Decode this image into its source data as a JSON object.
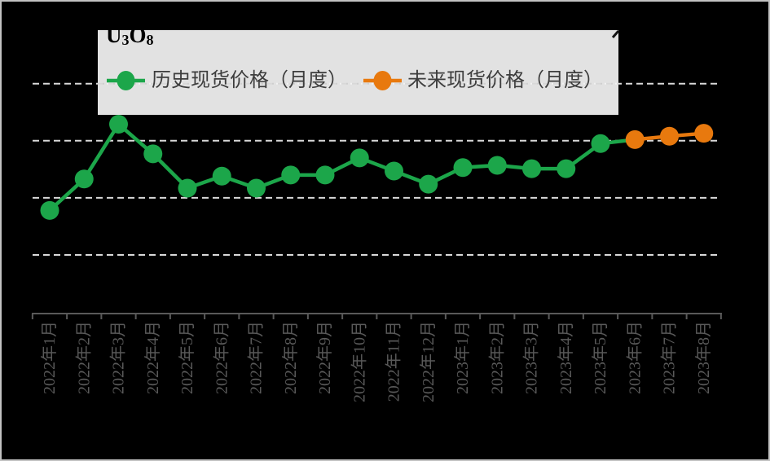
{
  "chart_data": {
    "type": "line",
    "title": "U3O8",
    "title_parts": [
      {
        "t": "U",
        "sub": false
      },
      {
        "t": "3",
        "sub": true
      },
      {
        "t": "O",
        "sub": false
      },
      {
        "t": "8",
        "sub": true
      }
    ],
    "categories": [
      "2022年1月",
      "2022年2月",
      "2022年3月",
      "2022年4月",
      "2022年5月",
      "2022年6月",
      "2022年7月",
      "2022年8月",
      "2022年9月",
      "2022年10月",
      "2022年11月",
      "2022年12月",
      "2023年1月",
      "2023年2月",
      "2023年3月",
      "2023年4月",
      "2023年5月",
      "2023年6月",
      "2023年7月",
      "2023年8月"
    ],
    "series": [
      {
        "name": "历史现货价格（月度）",
        "color": "#1ca64a",
        "start_index": 0,
        "values": [
          42.8,
          48.3,
          57.9,
          52.7,
          46.7,
          48.8,
          46.7,
          49.0,
          49.0,
          52.0,
          49.7,
          47.4,
          50.3,
          50.7,
          50.1,
          50.1,
          54.5
        ],
        "connects_to_next_series": true
      },
      {
        "name": "未来现货价格（月度）",
        "color": "#e8790e",
        "start_index": 17,
        "values": [
          55.2,
          55.8,
          56.3
        ],
        "connects_to_next_series": false
      }
    ],
    "xlabel": "",
    "ylabel": "",
    "ylim": [
      25,
      75
    ],
    "gridline_values": [
      35,
      45,
      55,
      65
    ],
    "y_axis_labels_visible": false,
    "values_estimated_from_gridlines": true,
    "grid": "horizontal-dashed",
    "legend_position": "top",
    "x_tick_label_rotation": -90
  },
  "legend": {
    "historical_label": "历史现货价格（月度）",
    "future_label": "未来现货价格（月度）"
  },
  "colors": {
    "background": "#000000",
    "frame_border": "#c2c2c2",
    "historical_series": "#1ca64a",
    "future_series": "#e8790e",
    "gridline": "#d9d9d9",
    "axis": "#595959",
    "tick_label": "#595959",
    "legend_box_bg": "#f3f3f3",
    "legend_text": "#3d3d3d",
    "title_text": "#000000"
  }
}
